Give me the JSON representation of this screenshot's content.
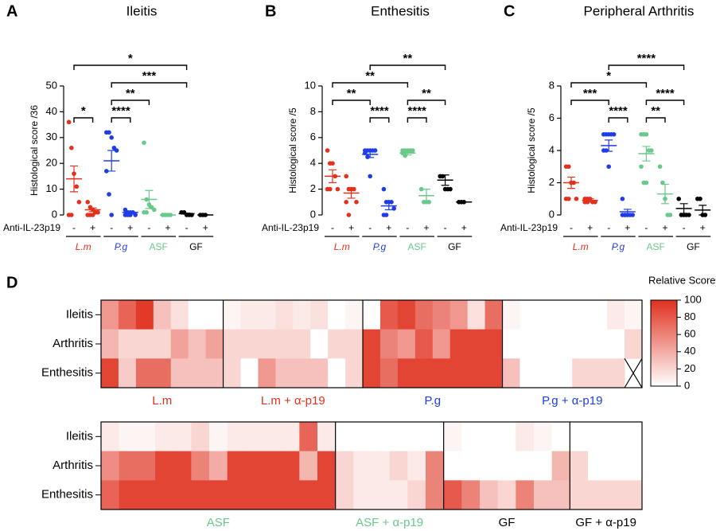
{
  "chart_data": [
    {
      "type": "dot",
      "panel_label": "A",
      "title": "Ileitis",
      "y_label": "Histological score /36",
      "ylim": [
        0,
        50
      ],
      "yticks": [
        0,
        10,
        20,
        30,
        40,
        50
      ],
      "treatment_label": "Anti-IL-23p19",
      "signs": [
        "-",
        "+"
      ],
      "strains": [
        {
          "name": "L.m",
          "color": "#e3311d",
          "groups": [
            {
              "points": [
                36,
                26,
                16,
                11,
                5,
                0,
                0
              ],
              "mean": 14,
              "sem": 5
            },
            {
              "points": [
                5,
                3,
                2,
                1,
                1,
                0,
                0,
                0
              ],
              "mean": 2,
              "sem": 0.7
            }
          ]
        },
        {
          "name": "P.g",
          "color": "#1f3de6",
          "groups": [
            {
              "points": [
                32,
                32,
                30,
                26,
                25,
                17,
                8,
                0
              ],
              "mean": 21,
              "sem": 4
            },
            {
              "points": [
                2,
                1,
                1,
                1,
                0,
                0,
                0,
                0
              ],
              "mean": 1,
              "sem": 0.3
            }
          ]
        },
        {
          "name": "ASF",
          "color": "#68c98a",
          "groups": [
            {
              "points": [
                28,
                6,
                4,
                3,
                2,
                1,
                1
              ],
              "mean": 6,
              "sem": 3.5
            },
            {
              "points": [
                0,
                0,
                0,
                0
              ],
              "mean": 0,
              "sem": 0
            }
          ]
        },
        {
          "name": "GF",
          "color": "#000000",
          "groups": [
            {
              "points": [
                1,
                1,
                0,
                0,
                0
              ],
              "mean": 0.5,
              "sem": 0.2
            },
            {
              "points": [
                0,
                0,
                0
              ],
              "mean": 0,
              "sem": 0
            }
          ]
        }
      ],
      "comparisons": [
        {
          "groups": [
            0,
            1
          ],
          "label": "*"
        },
        {
          "groups": [
            2,
            3
          ],
          "label": "****"
        },
        {
          "groups": [
            2,
            4
          ],
          "label": "**"
        },
        {
          "groups": [
            2,
            6
          ],
          "label": "***"
        },
        {
          "groups": [
            0,
            6
          ],
          "label": "*"
        }
      ]
    },
    {
      "type": "dot",
      "panel_label": "B",
      "title": "Enthesitis",
      "y_label": "Histological score /5",
      "ylim": [
        0,
        10
      ],
      "yticks": [
        0,
        2,
        4,
        6,
        8,
        10
      ],
      "treatment_label": "Anti-IL-23p19",
      "signs": [
        "-",
        "+"
      ],
      "strains": [
        {
          "name": "L.m",
          "color": "#e3311d",
          "groups": [
            {
              "points": [
                5,
                4,
                4,
                3,
                2,
                2,
                2
              ],
              "mean": 3,
              "sem": 0.5
            },
            {
              "points": [
                3,
                2,
                2,
                2,
                1,
                1,
                0
              ],
              "mean": 1.7,
              "sem": 0.4
            }
          ]
        },
        {
          "name": "P.g",
          "color": "#1f3de6",
          "groups": [
            {
              "points": [
                5,
                5,
                5,
                5,
                5,
                4.8,
                4.5,
                3
              ],
              "mean": 4.7,
              "sem": 0.25
            },
            {
              "points": [
                2,
                1,
                1,
                1,
                0.5,
                0,
                0
              ],
              "mean": 0.7,
              "sem": 0.3
            }
          ]
        },
        {
          "name": "ASF",
          "color": "#68c98a",
          "groups": [
            {
              "points": [
                5,
                5,
                5,
                5,
                5,
                4.8,
                4.6
              ],
              "mean": 4.8,
              "sem": 0.15
            },
            {
              "points": [
                2,
                1,
                1,
                1
              ],
              "mean": 1.5,
              "sem": 0.5
            }
          ]
        },
        {
          "name": "GF",
          "color": "#000000",
          "groups": [
            {
              "points": [
                3,
                3,
                2,
                2,
                2
              ],
              "mean": 2.7,
              "sem": 0.4
            },
            {
              "points": [
                1,
                1,
                1
              ],
              "mean": 1,
              "sem": 0
            }
          ]
        }
      ],
      "comparisons": [
        {
          "groups": [
            0,
            2
          ],
          "label": "**"
        },
        {
          "groups": [
            2,
            3
          ],
          "label": "****"
        },
        {
          "groups": [
            4,
            5
          ],
          "label": "****"
        },
        {
          "groups": [
            4,
            6
          ],
          "label": "**"
        },
        {
          "groups": [
            0,
            4
          ],
          "label": "**"
        },
        {
          "groups": [
            2,
            6
          ],
          "label": "**"
        }
      ]
    },
    {
      "type": "dot",
      "panel_label": "C",
      "title": "Peripheral Arthritis",
      "y_label": "Histological score /5",
      "ylim": [
        0,
        8
      ],
      "yticks": [
        0,
        2,
        4,
        6,
        8
      ],
      "treatment_label": "Anti-IL-23p19",
      "signs": [
        "-",
        "+"
      ],
      "strains": [
        {
          "name": "L.m",
          "color": "#e3311d",
          "groups": [
            {
              "points": [
                3,
                3,
                2,
                2,
                1,
                1,
                1
              ],
              "mean": 2,
              "sem": 0.35
            },
            {
              "points": [
                1,
                1,
                1,
                0.8,
                0.8,
                0.8,
                0.8
              ],
              "mean": 0.9,
              "sem": 0.1
            }
          ]
        },
        {
          "name": "P.g",
          "color": "#1f3de6",
          "groups": [
            {
              "points": [
                5,
                5,
                5,
                5,
                5,
                4,
                4,
                3
              ],
              "mean": 4.3,
              "sem": 0.35
            },
            {
              "points": [
                1,
                0,
                0,
                0,
                0,
                0,
                0
              ],
              "mean": 0.2,
              "sem": 0.15
            }
          ]
        },
        {
          "name": "ASF",
          "color": "#68c98a",
          "groups": [
            {
              "points": [
                5,
                5,
                5,
                4,
                4,
                3,
                2,
                2
              ],
              "mean": 3.8,
              "sem": 0.45
            },
            {
              "points": [
                3,
                2,
                1,
                0,
                0
              ],
              "mean": 1.3,
              "sem": 0.6
            }
          ]
        },
        {
          "name": "GF",
          "color": "#000000",
          "groups": [
            {
              "points": [
                1,
                0,
                0,
                0,
                0
              ],
              "mean": 0.4,
              "sem": 0.3
            },
            {
              "points": [
                1,
                1,
                0,
                0
              ],
              "mean": 0.3,
              "sem": 0.3
            }
          ]
        }
      ],
      "comparisons": [
        {
          "groups": [
            0,
            2
          ],
          "label": "***"
        },
        {
          "groups": [
            2,
            3
          ],
          "label": "****"
        },
        {
          "groups": [
            4,
            5
          ],
          "label": "**"
        },
        {
          "groups": [
            4,
            6
          ],
          "label": "****"
        },
        {
          "groups": [
            0,
            4
          ],
          "label": "*"
        },
        {
          "groups": [
            2,
            6
          ],
          "label": "****"
        }
      ]
    },
    {
      "type": "heatmap",
      "panel_label": "D",
      "legend_title": "Relative Score",
      "rows": [
        "Ileitis",
        "Arthritis",
        "Enthesitis"
      ],
      "clim": [
        0,
        100
      ],
      "cticks": [
        0,
        20,
        40,
        60,
        80,
        100
      ],
      "color_low": "#ffffff",
      "color_high": "#e0301e",
      "blocks": [
        {
          "groups": [
            {
              "name": "L.m",
              "color": "#e3311d",
              "values": [
                [
                  50,
                  75,
                  95,
                  30,
                  15,
                  0,
                  0
                ],
                [
                  35,
                  20,
                  20,
                  20,
                  45,
                  30,
                  45
                ],
                [
                  90,
                  25,
                  70,
                  70,
                  30,
                  30,
                  30
                ]
              ]
            },
            {
              "name": "L.m + α-p19",
              "color": "#e3311d",
              "values": [
                [
                  5,
                  10,
                  10,
                  15,
                  10,
                  15,
                  0,
                  5
                ],
                [
                  20,
                  20,
                  20,
                  20,
                  20,
                  0,
                  20,
                  20
                ],
                [
                  20,
                  0,
                  50,
                  30,
                  30,
                  30,
                  0,
                  20
                ]
              ]
            },
            {
              "name": "P.g",
              "color": "#1f3de6",
              "values": [
                [
                  0,
                  80,
                  90,
                  70,
                  60,
                  50,
                  15,
                  70
                ],
                [
                  90,
                  60,
                  50,
                  80,
                  50,
                  90,
                  90,
                  90
                ],
                [
                  90,
                  70,
                  90,
                  90,
                  90,
                  90,
                  90,
                  90
                ]
              ]
            },
            {
              "name": "P.g + α-p19",
              "color": "#1f3de6",
              "values": [
                [
                  5,
                  0,
                  0,
                  0,
                  0,
                  0,
                  10,
                  5
                ],
                [
                  0,
                  0,
                  0,
                  0,
                  0,
                  0,
                  0,
                  20
                ],
                [
                  30,
                  0,
                  0,
                  0,
                  20,
                  20,
                  20,
                  null
                ]
              ]
            }
          ]
        },
        {
          "groups": [
            {
              "name": "ASF",
              "color": "#68c98a",
              "values": [
                [
                  10,
                  5,
                  5,
                  10,
                  10,
                  20,
                  5,
                  10,
                  10,
                  10,
                  10,
                  75,
                  10
                ],
                [
                  55,
                  70,
                  70,
                  90,
                  90,
                  60,
                  40,
                  90,
                  90,
                  90,
                  90,
                  35,
                  90
                ],
                [
                  75,
                  90,
                  90,
                  90,
                  90,
                  90,
                  90,
                  90,
                  90,
                  90,
                  90,
                  90,
                  90
                ]
              ]
            },
            {
              "name": "ASF + α-p19",
              "color": "#68c98a",
              "values": [
                [
                  0,
                  0,
                  0,
                  0,
                  0,
                  0
                ],
                [
                  20,
                  10,
                  10,
                  20,
                  10,
                  60
                ],
                [
                  20,
                  10,
                  10,
                  10,
                  20,
                  60
                ]
              ]
            },
            {
              "name": "GF",
              "color": "#000000",
              "values": [
                [
                  5,
                  0,
                  0,
                  0,
                  10,
                  5,
                  0
                ],
                [
                  0,
                  0,
                  0,
                  0,
                  0,
                  0,
                  35
                ],
                [
                  80,
                  60,
                  30,
                  20,
                  60,
                  30,
                  30
                ]
              ]
            },
            {
              "name": "GF + α-p19",
              "color": "#000000",
              "values": [
                [
                  0,
                  0,
                  0,
                  0
                ],
                [
                  20,
                  0,
                  0,
                  0
                ],
                [
                  20,
                  20,
                  20,
                  20
                ]
              ]
            }
          ]
        }
      ]
    }
  ]
}
